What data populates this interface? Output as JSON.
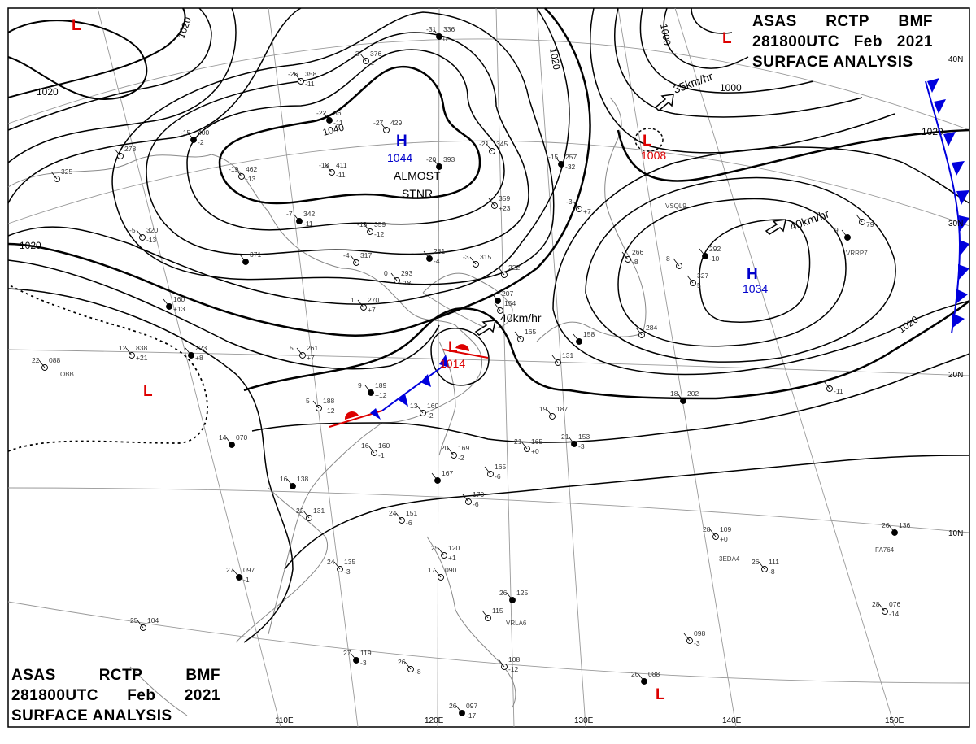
{
  "header": {
    "line1": [
      "ASAS",
      "RCTP",
      "BMF"
    ],
    "line2": [
      "281800UTC",
      "Feb",
      "2021"
    ],
    "line3": "SURFACE ANALYSIS"
  },
  "colors": {
    "isobar": "#000000",
    "high_label": "#0000cc",
    "low_label": "#dd0000",
    "warm_front": "#dd0000",
    "cold_front": "#0000dd",
    "grid": "#999999",
    "coast": "#888888"
  },
  "longitude_labels": [
    "110E",
    "120E",
    "130E",
    "140E",
    "150E"
  ],
  "latitude_labels": [
    "40N",
    "30N",
    "20N",
    "10N"
  ],
  "isobar_labels": [
    "1020",
    "1020",
    "1040",
    "1020",
    "1000",
    "1000",
    "1020",
    "1020",
    "1020"
  ],
  "pressure_systems": [
    {
      "type": "H",
      "value": "1044",
      "note": [
        "ALMOST",
        "STNR"
      ],
      "symbol": "high"
    },
    {
      "type": "H",
      "value": "1034",
      "note": [],
      "symbol": "high"
    },
    {
      "type": "L",
      "value": "1014",
      "note": [],
      "symbol": "low"
    },
    {
      "type": "L",
      "value": "1008",
      "note": [],
      "symbol": "low"
    },
    {
      "type": "L",
      "value": "",
      "note": [],
      "symbol": "low"
    },
    {
      "type": "L",
      "value": "",
      "note": [],
      "symbol": "low"
    },
    {
      "type": "L",
      "value": "",
      "note": [],
      "symbol": "low"
    },
    {
      "type": "L",
      "value": "",
      "note": [],
      "symbol": "low"
    }
  ],
  "motion_labels": [
    "35km/hr",
    "40km/hr",
    "40km/hr"
  ],
  "station_codes": [
    "VSQL9",
    "VRRP7",
    "3EDA4",
    "FA764",
    "VRLA6",
    "OBB"
  ],
  "stations": [
    {
      "t": "-31",
      "p": "336",
      "w": "0"
    },
    {
      "t": "-3",
      "p": "376",
      "w": "4"
    },
    {
      "t": "-26",
      "p": "358",
      "w": "-11"
    },
    {
      "t": "-22",
      "p": "36",
      "w": "-11"
    },
    {
      "t": "-27",
      "p": "429",
      "w": ""
    },
    {
      "t": "-21",
      "p": "345",
      "w": ""
    },
    {
      "t": "-20",
      "p": "393",
      "w": ""
    },
    {
      "t": "-19",
      "p": "462",
      "w": "-13"
    },
    {
      "t": "-18",
      "p": "411",
      "w": "-11"
    },
    {
      "t": "-15",
      "p": "400",
      "w": "-2"
    },
    {
      "t": "",
      "p": "278",
      "w": ""
    },
    {
      "t": "",
      "p": "325",
      "w": ""
    },
    {
      "t": "-7",
      "p": "342",
      "w": "-11"
    },
    {
      "t": "-13",
      "p": "359",
      "w": "-12"
    },
    {
      "t": "-5",
      "p": "320",
      "w": "-13"
    },
    {
      "t": "",
      "p": "371",
      "w": ""
    },
    {
      "t": "-4",
      "p": "317",
      "w": ""
    },
    {
      "t": "0",
      "p": "293",
      "w": "-18"
    },
    {
      "t": "",
      "p": "281",
      "w": "-4"
    },
    {
      "t": "-3",
      "p": "315",
      "w": ""
    },
    {
      "t": "",
      "p": "359",
      "w": "+23"
    },
    {
      "t": "-15",
      "p": "257",
      "w": "-32"
    },
    {
      "t": "-3",
      "p": "",
      "w": "+7"
    },
    {
      "t": "",
      "p": "222",
      "w": ""
    },
    {
      "t": "",
      "p": "207",
      "w": ""
    },
    {
      "t": "",
      "p": "154",
      "w": ""
    },
    {
      "t": "1",
      "p": "270",
      "w": "+7"
    },
    {
      "t": "",
      "p": "160",
      "w": "+13"
    },
    {
      "t": "5",
      "p": "261",
      "w": "+7"
    },
    {
      "t": "12",
      "p": "838",
      "w": "+21"
    },
    {
      "t": "",
      "p": "223",
      "w": "+8"
    },
    {
      "t": "22",
      "p": "088",
      "w": ""
    },
    {
      "t": "5",
      "p": "188",
      "w": "+12"
    },
    {
      "t": "9",
      "p": "189",
      "w": "+12"
    },
    {
      "t": "13",
      "p": "160",
      "w": "-2"
    },
    {
      "t": "16",
      "p": "160",
      "w": "-1"
    },
    {
      "t": "14",
      "p": "070",
      "w": ""
    },
    {
      "t": "20",
      "p": "169",
      "w": "-2"
    },
    {
      "t": "",
      "p": "165",
      "w": "-6"
    },
    {
      "t": "",
      "p": "167",
      "w": ""
    },
    {
      "t": "",
      "p": "170",
      "w": "-6"
    },
    {
      "t": "21",
      "p": "165",
      "w": "+0"
    },
    {
      "t": "21",
      "p": "153",
      "w": "-3"
    },
    {
      "t": "19",
      "p": "187",
      "w": ""
    },
    {
      "t": "",
      "p": "266",
      "w": "-8"
    },
    {
      "t": "",
      "p": "292",
      "w": "-10"
    },
    {
      "t": "8",
      "p": "",
      "w": ""
    },
    {
      "t": "",
      "p": "327",
      "w": "5"
    },
    {
      "t": "9",
      "p": "",
      "w": ""
    },
    {
      "t": "",
      "p": "",
      "w": "79"
    },
    {
      "t": "",
      "p": "284",
      "w": ""
    },
    {
      "t": "18",
      "p": "202",
      "w": ""
    },
    {
      "t": "",
      "p": "",
      "w": "-11"
    },
    {
      "t": "",
      "p": "165",
      "w": ""
    },
    {
      "t": "",
      "p": "158",
      "w": ""
    },
    {
      "t": "",
      "p": "131",
      "w": ""
    },
    {
      "t": "22",
      "p": "131",
      "w": ""
    },
    {
      "t": "16",
      "p": "138",
      "w": ""
    },
    {
      "t": "24",
      "p": "151",
      "w": "-6"
    },
    {
      "t": "24",
      "p": "135",
      "w": "-3"
    },
    {
      "t": "27",
      "p": "097",
      "w": "-1"
    },
    {
      "t": "25",
      "p": "120",
      "w": "+1"
    },
    {
      "t": "17",
      "p": "090",
      "w": ""
    },
    {
      "t": "26",
      "p": "125",
      "w": ""
    },
    {
      "t": "",
      "p": "115",
      "w": ""
    },
    {
      "t": "25",
      "p": "104",
      "w": ""
    },
    {
      "t": "27",
      "p": "119",
      "w": "-3"
    },
    {
      "t": "26",
      "p": "",
      "w": "-8"
    },
    {
      "t": "",
      "p": "108",
      "w": "-12"
    },
    {
      "t": "26",
      "p": "097",
      "w": "-17"
    },
    {
      "t": "28",
      "p": "109",
      "w": "+0"
    },
    {
      "t": "26",
      "p": "111",
      "w": "-8"
    },
    {
      "t": "26",
      "p": "136",
      "w": ""
    },
    {
      "t": "28",
      "p": "076",
      "w": "-14"
    },
    {
      "t": "",
      "p": "098",
      "w": "-3"
    },
    {
      "t": "26",
      "p": "088",
      "w": ""
    }
  ]
}
